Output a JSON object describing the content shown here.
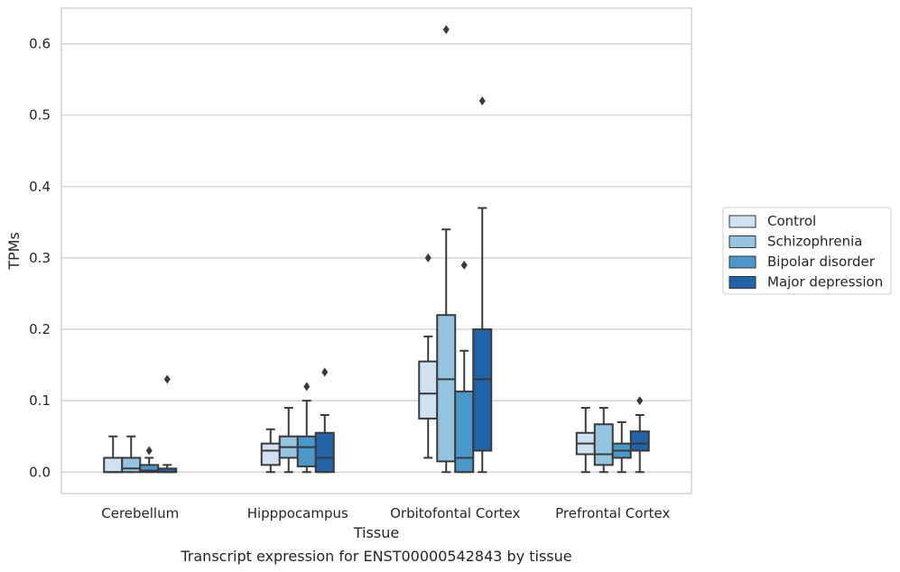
{
  "caption": "Transcript expression for ENST00000542843 by tissue",
  "colors": {
    "Control": "#d0e1f2",
    "Schizophrenia": "#94c4df",
    "Bipolar disorder": "#4a98c9",
    "Major depression": "#2163a9",
    "line": "#3a3a3a",
    "grid": "#cccccc",
    "frame": "#cccccc"
  },
  "chart_data": {
    "type": "box",
    "title": "",
    "xlabel": "Tissue",
    "ylabel": "TPMs",
    "ylim": [
      -0.03,
      0.65
    ],
    "yticks": [
      0.0,
      0.1,
      0.2,
      0.3,
      0.4,
      0.5,
      0.6
    ],
    "ytick_labels": [
      "0.0",
      "0.1",
      "0.2",
      "0.3",
      "0.4",
      "0.5",
      "0.6"
    ],
    "grid": true,
    "legend_placement": "right",
    "categories": [
      "Cerebellum",
      "Hipppocampus",
      "Orbitofontal Cortex",
      "Prefrontal Cortex"
    ],
    "series": [
      {
        "name": "Control",
        "boxes": [
          {
            "whislo": 0.0,
            "q1": 0.0,
            "med": 0.0,
            "q3": 0.02,
            "whishi": 0.05,
            "fliers": []
          },
          {
            "whislo": 0.0,
            "q1": 0.01,
            "med": 0.03,
            "q3": 0.04,
            "whishi": 0.06,
            "fliers": []
          },
          {
            "whislo": 0.02,
            "q1": 0.075,
            "med": 0.11,
            "q3": 0.155,
            "whishi": 0.19,
            "fliers": [
              0.3
            ]
          },
          {
            "whislo": 0.0,
            "q1": 0.025,
            "med": 0.04,
            "q3": 0.055,
            "whishi": 0.09,
            "fliers": []
          }
        ]
      },
      {
        "name": "Schizophrenia",
        "boxes": [
          {
            "whislo": 0.0,
            "q1": 0.0,
            "med": 0.005,
            "q3": 0.02,
            "whishi": 0.05,
            "fliers": []
          },
          {
            "whislo": 0.0,
            "q1": 0.02,
            "med": 0.035,
            "q3": 0.05,
            "whishi": 0.09,
            "fliers": []
          },
          {
            "whislo": 0.0,
            "q1": 0.015,
            "med": 0.13,
            "q3": 0.22,
            "whishi": 0.34,
            "fliers": [
              0.62
            ]
          },
          {
            "whislo": 0.0,
            "q1": 0.01,
            "med": 0.025,
            "q3": 0.067,
            "whishi": 0.09,
            "fliers": []
          }
        ]
      },
      {
        "name": "Bipolar disorder",
        "boxes": [
          {
            "whislo": 0.0,
            "q1": 0.0,
            "med": 0.002,
            "q3": 0.01,
            "whishi": 0.02,
            "fliers": [
              0.03
            ]
          },
          {
            "whislo": 0.0,
            "q1": 0.008,
            "med": 0.035,
            "q3": 0.05,
            "whishi": 0.1,
            "fliers": [
              0.12
            ]
          },
          {
            "whislo": 0.0,
            "q1": 0.0,
            "med": 0.02,
            "q3": 0.113,
            "whishi": 0.17,
            "fliers": [
              0.29
            ]
          },
          {
            "whislo": 0.0,
            "q1": 0.02,
            "med": 0.03,
            "q3": 0.04,
            "whishi": 0.07,
            "fliers": []
          }
        ]
      },
      {
        "name": "Major depression",
        "boxes": [
          {
            "whislo": 0.0,
            "q1": 0.0,
            "med": 0.0,
            "q3": 0.005,
            "whishi": 0.01,
            "fliers": [
              0.13
            ]
          },
          {
            "whislo": 0.0,
            "q1": 0.0,
            "med": 0.02,
            "q3": 0.055,
            "whishi": 0.08,
            "fliers": [
              0.14
            ]
          },
          {
            "whislo": 0.0,
            "q1": 0.03,
            "med": 0.13,
            "q3": 0.2,
            "whishi": 0.37,
            "fliers": [
              0.52
            ]
          },
          {
            "whislo": 0.0,
            "q1": 0.03,
            "med": 0.04,
            "q3": 0.057,
            "whishi": 0.08,
            "fliers": [
              0.1
            ]
          }
        ]
      }
    ]
  }
}
